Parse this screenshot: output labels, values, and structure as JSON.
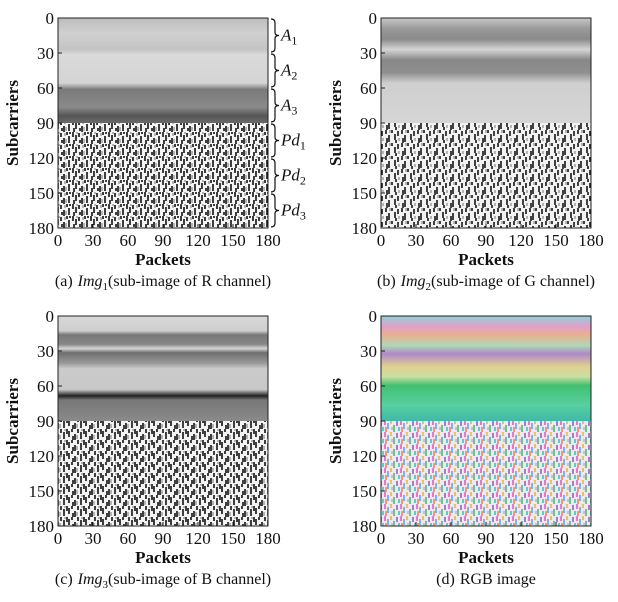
{
  "chart_data": [
    {
      "type": "image",
      "xlabel": "Packets",
      "ylabel": "Subcarriers",
      "xlim": [
        0,
        180
      ],
      "ylim": [
        180,
        0
      ],
      "xticks": [
        0,
        30,
        60,
        90,
        120,
        150,
        180
      ],
      "yticks": [
        0,
        30,
        60,
        90,
        120,
        150,
        180
      ],
      "caption": {
        "label": "(a)",
        "name": "Img",
        "subscript": "1",
        "text": "(sub-image of R channel)"
      },
      "annotations": [
        {
          "label": "A",
          "subscript": "1",
          "rows": [
            0,
            30
          ]
        },
        {
          "label": "A",
          "subscript": "2",
          "rows": [
            30,
            60
          ]
        },
        {
          "label": "A",
          "subscript": "3",
          "rows": [
            60,
            90
          ]
        },
        {
          "label": "Pd",
          "subscript": "1",
          "rows": [
            90,
            120
          ]
        },
        {
          "label": "Pd",
          "subscript": "2",
          "rows": [
            120,
            150
          ]
        },
        {
          "label": "Pd",
          "subscript": "3",
          "rows": [
            150,
            180
          ]
        }
      ]
    },
    {
      "type": "image",
      "xlabel": "Packets",
      "ylabel": "Subcarriers",
      "xlim": [
        0,
        180
      ],
      "ylim": [
        180,
        0
      ],
      "xticks": [
        0,
        30,
        60,
        90,
        120,
        150,
        180
      ],
      "yticks": [
        0,
        30,
        60,
        90,
        120,
        150,
        180
      ],
      "caption": {
        "label": "(b)",
        "name": "Img",
        "subscript": "2",
        "text": "(sub-image of G channel)"
      }
    },
    {
      "type": "image",
      "xlabel": "Packets",
      "ylabel": "Subcarriers",
      "xlim": [
        0,
        180
      ],
      "ylim": [
        180,
        0
      ],
      "xticks": [
        0,
        30,
        60,
        90,
        120,
        150,
        180
      ],
      "yticks": [
        0,
        30,
        60,
        90,
        120,
        150,
        180
      ],
      "caption": {
        "label": "(c)",
        "name": "Img",
        "subscript": "3",
        "text": "(sub-image of B channel)"
      }
    },
    {
      "type": "image",
      "xlabel": "Packets",
      "ylabel": "Subcarriers",
      "xlim": [
        0,
        180
      ],
      "ylim": [
        180,
        0
      ],
      "xticks": [
        0,
        30,
        60,
        90,
        120,
        150,
        180
      ],
      "yticks": [
        0,
        30,
        60,
        90,
        120,
        150,
        180
      ],
      "caption": {
        "label": "(d)",
        "text": "RGB image"
      }
    }
  ]
}
